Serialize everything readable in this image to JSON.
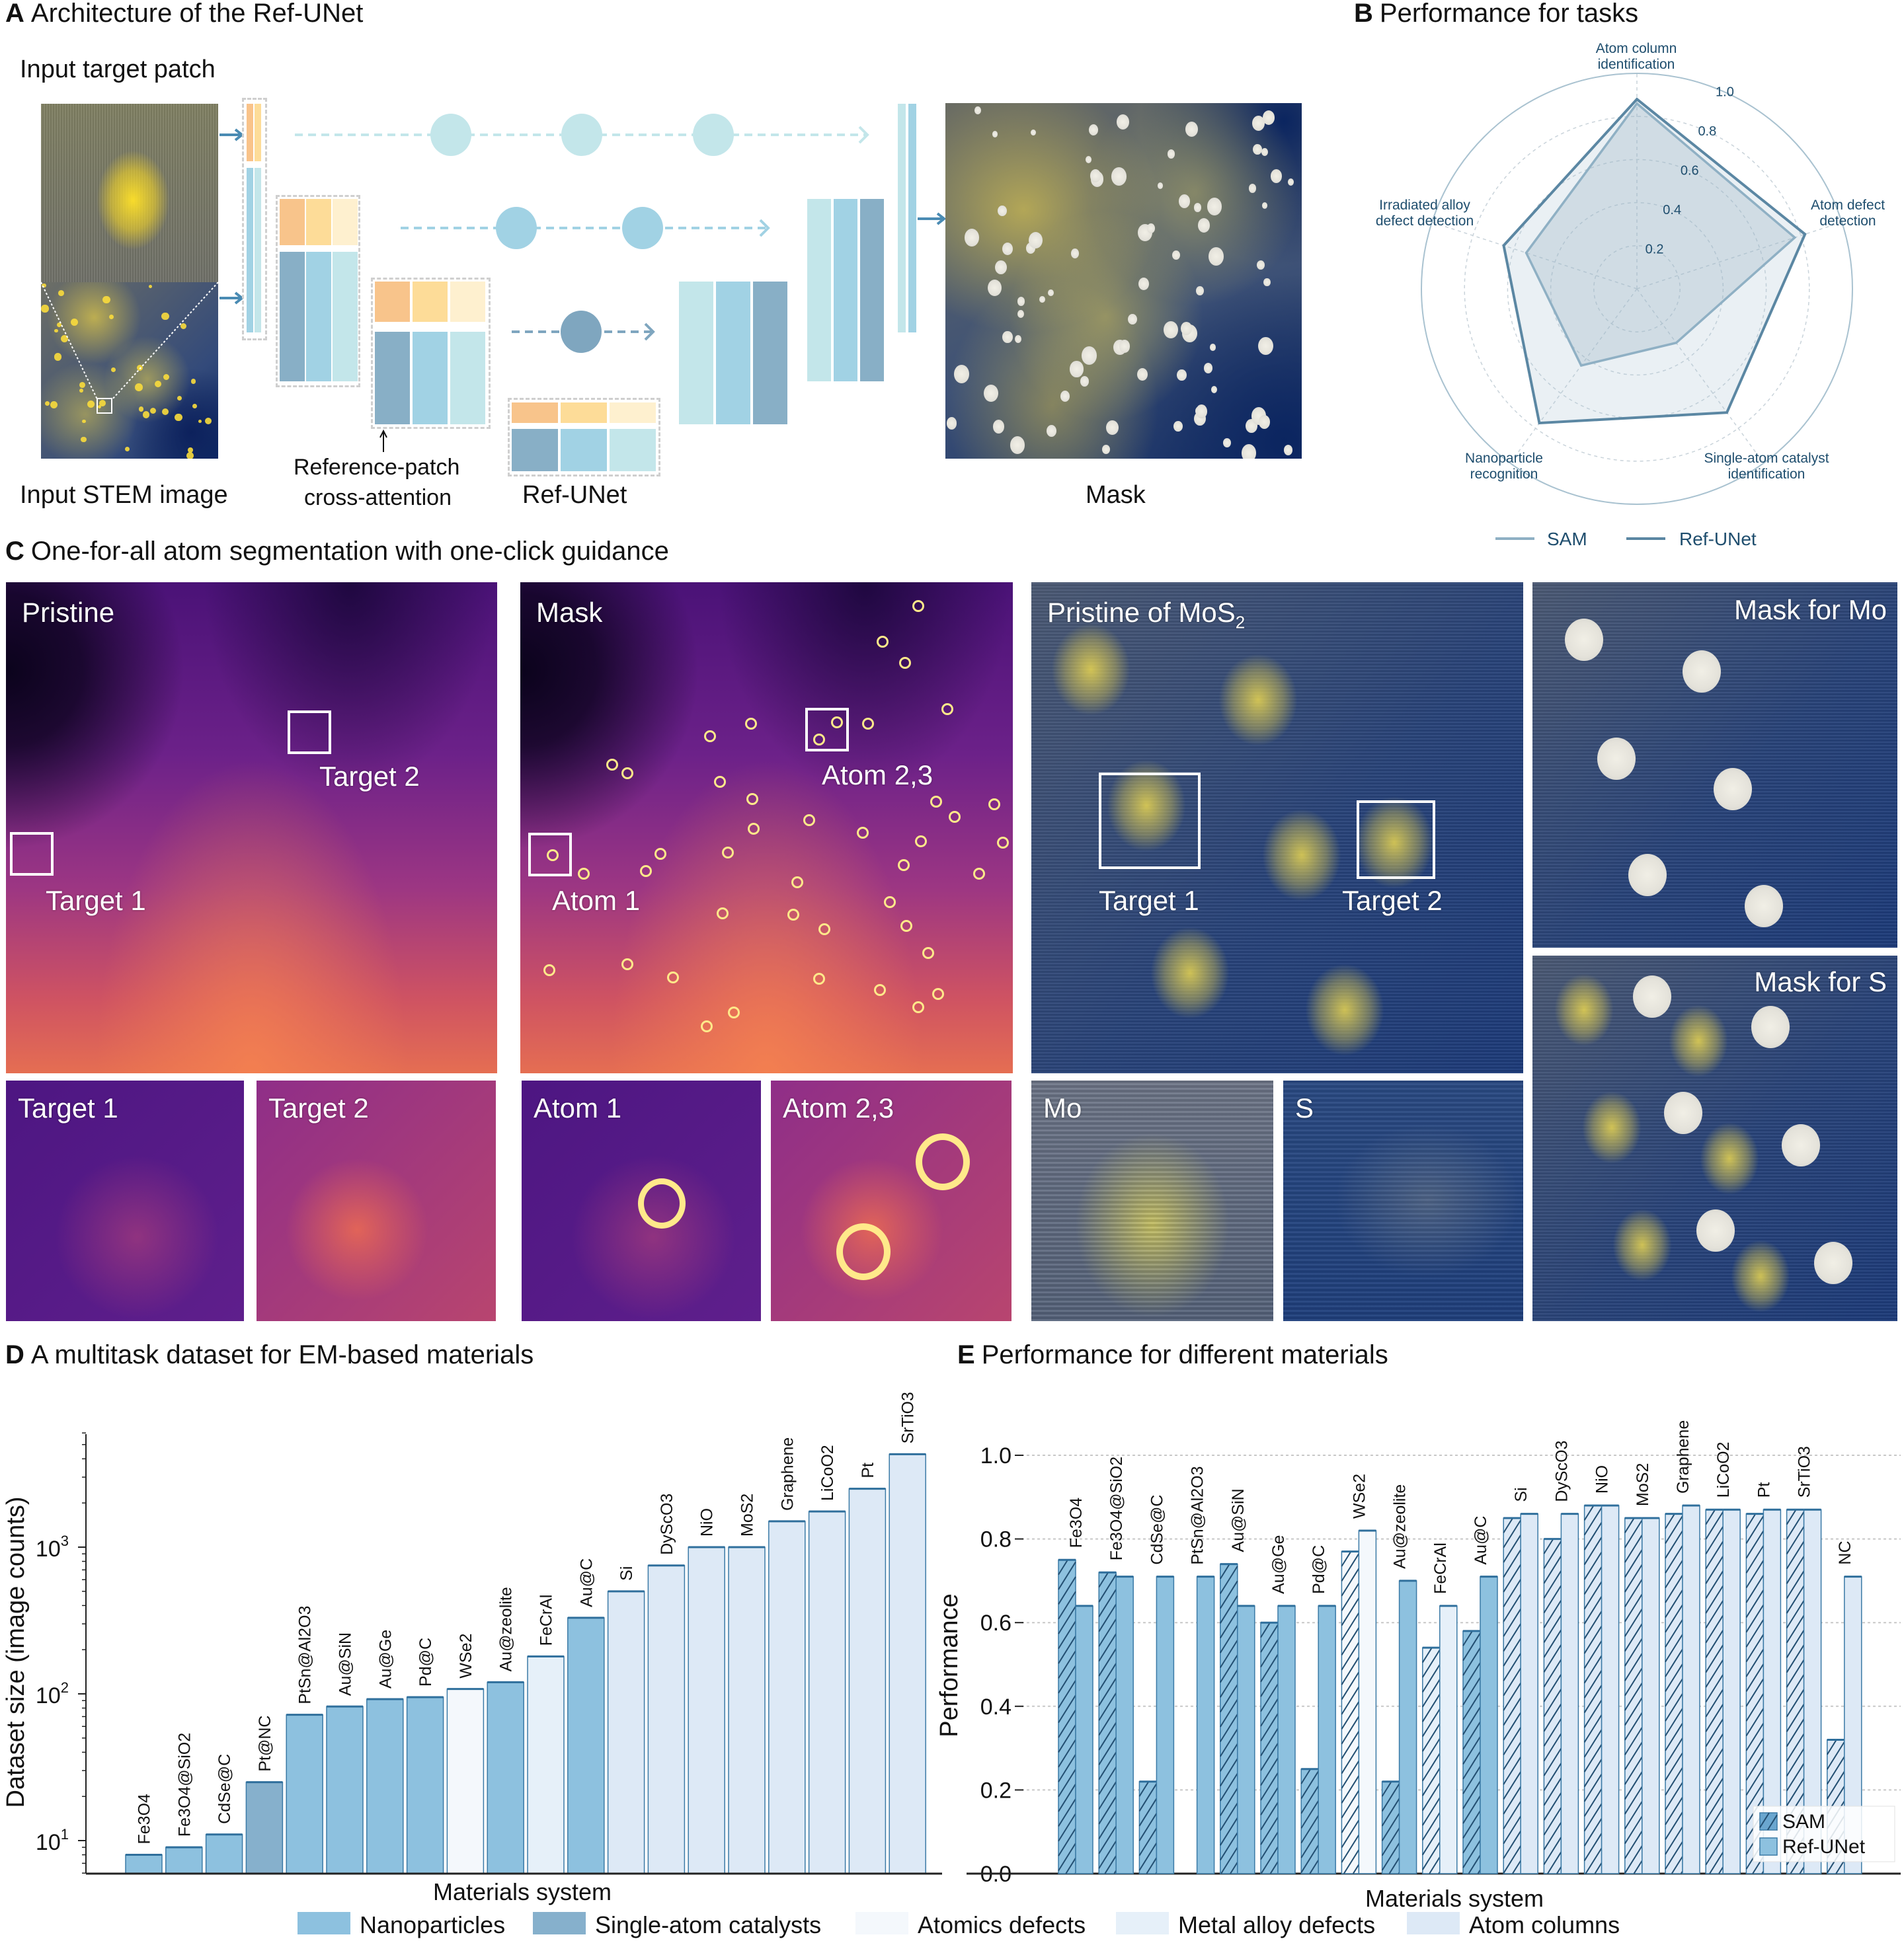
{
  "panels": {
    "A": {
      "letter": "A",
      "title": "Architecture of the Ref-UNet",
      "input_patch_label": "Input target patch",
      "stem_label": "Input STEM image",
      "ref_patch_label_1": "Reference-patch",
      "ref_patch_label_2": "cross-attention",
      "refunet_label": "Ref-UNet",
      "mask_label": "Mask"
    },
    "B": {
      "letter": "B",
      "title": "Performance for tasks"
    },
    "C": {
      "letter": "C",
      "title": "One-for-all atom segmentation with one-click guidance",
      "pristine": "Pristine",
      "target1": "Target 1",
      "target2": "Target 2",
      "mask": "Mask",
      "atom1": "Atom 1",
      "atom23": "Atom 2,3",
      "mos2_prefix": "Pristine of MoS",
      "mos2_sub": "2",
      "mos2_target1": "Target 1",
      "mos2_target2": "Target 2",
      "mask_mo": "Mask  for Mo",
      "mask_s": "Mask for S",
      "thumb_target1": "Target 1",
      "thumb_target2": "Target 2",
      "thumb_atom1": "Atom 1",
      "thumb_atom23": "Atom 2,3",
      "thumb_mo": "Mo",
      "thumb_s": "S"
    },
    "D": {
      "letter": "D",
      "title": "A multitask dataset for EM-based materials"
    },
    "E": {
      "letter": "E",
      "title": "Performance for different materials"
    }
  },
  "colors": {
    "Nanoparticles": "#8dc1df",
    "Single-atom catalysts": "#86b0cc",
    "Atomics defects": "#f4f8fc",
    "Metal alloy defects": "#e6f0f9",
    "Atom columns": "#dde9f6",
    "bar_edge": "#3b7aa6",
    "sam_line": "#8fb0c4",
    "refunet_line": "#5b87a3",
    "radar_text": "#1f4e6e"
  },
  "legend": {
    "categories": [
      "Nanoparticles",
      "Single-atom catalysts",
      "Atomics defects",
      "Metal alloy defects",
      "Atom columns"
    ]
  },
  "chart_data": [
    {
      "type": "radar",
      "panel": "B",
      "categories": [
        "Atom column identification",
        "Atom defect detection",
        "Single-atom catalyst identification",
        "Nanoparticle recognition",
        "Irradiated alloy defect detection"
      ],
      "category_lines": [
        [
          "Atom column",
          "identification"
        ],
        [
          "Atom defect",
          "detection"
        ],
        [
          "Single-atom catalyst",
          "identification"
        ],
        [
          "Nanoparticle",
          "recognition"
        ],
        [
          "Irradiated alloy",
          "defect detection"
        ]
      ],
      "series": [
        {
          "name": "SAM",
          "values": [
            0.86,
            0.77,
            0.31,
            0.44,
            0.54
          ]
        },
        {
          "name": "Ref-UNet",
          "values": [
            0.88,
            0.82,
            0.71,
            0.77,
            0.65
          ]
        }
      ],
      "rticks": [
        0.2,
        0.4,
        0.6,
        0.8,
        1.0
      ],
      "rlim": [
        0,
        1.0
      ],
      "legend_position": "bottom"
    },
    {
      "type": "bar",
      "panel": "D",
      "categories": [
        "Fe3O4",
        "Fe3O4@SiO2",
        "CdSe@C",
        "Pt@NC",
        "PtSn@Al2O3",
        "Au@SiN",
        "Au@Ge",
        "Pd@C",
        "WSe2",
        "Au@zeolite",
        "FeCrAl",
        "Au@C",
        "Si",
        "DyScO3",
        "NiO",
        "MoS2",
        "Graphene",
        "LiCoO2",
        "Pt",
        "SrTiO3"
      ],
      "groups": [
        "Nanoparticles",
        "Nanoparticles",
        "Nanoparticles",
        "Single-atom catalysts",
        "Nanoparticles",
        "Nanoparticles",
        "Nanoparticles",
        "Nanoparticles",
        "Atomics defects",
        "Nanoparticles",
        "Metal alloy defects",
        "Nanoparticles",
        "Atom columns",
        "Atom columns",
        "Atom columns",
        "Atom columns",
        "Atom columns",
        "Atom columns",
        "Atom columns",
        "Atom columns"
      ],
      "values": [
        8,
        9,
        11,
        25,
        72,
        82,
        92,
        95,
        108,
        120,
        180,
        330,
        500,
        750,
        1000,
        1000,
        1500,
        1750,
        2500,
        4300
      ],
      "xlabel": "Materials system",
      "ylabel": "Dataset size (image counts)",
      "yscale": "log",
      "ylim": [
        6,
        6000
      ],
      "yticks": [
        10,
        100,
        1000
      ],
      "legend_position": "bottom"
    },
    {
      "type": "bar",
      "panel": "E",
      "categories": [
        "Fe3O4",
        "Fe3O4@SiO2",
        "CdSe@C",
        "PtSn@Al2O3",
        "Au@SiN",
        "Au@Ge",
        "Pd@C",
        "WSe2",
        "Au@zeolite",
        "FeCrAl",
        "Au@C",
        "Si",
        "DyScO3",
        "NiO",
        "MoS2",
        "Graphene",
        "LiCoO2",
        "Pt",
        "SrTiO3",
        "NC"
      ],
      "groups": [
        "Nanoparticles",
        "Nanoparticles",
        "Nanoparticles",
        "Nanoparticles",
        "Nanoparticles",
        "Nanoparticles",
        "Nanoparticles",
        "Atomics defects",
        "Nanoparticles",
        "Metal alloy defects",
        "Nanoparticles",
        "Atom columns",
        "Atom columns",
        "Atom columns",
        "Atom columns",
        "Atom columns",
        "Atom columns",
        "Atom columns",
        "Atom columns",
        "Atom columns"
      ],
      "series": [
        {
          "name": "SAM",
          "pattern": "hatched",
          "values": [
            0.75,
            0.72,
            0.22,
            null,
            0.74,
            0.6,
            0.25,
            0.77,
            0.22,
            0.54,
            0.58,
            0.85,
            0.8,
            0.88,
            0.85,
            0.86,
            0.87,
            0.86,
            0.87,
            0.32
          ]
        },
        {
          "name": "Ref-UNet",
          "pattern": "solid",
          "values": [
            0.64,
            0.71,
            0.71,
            0.71,
            0.64,
            0.64,
            0.64,
            0.82,
            0.7,
            0.64,
            0.71,
            0.86,
            0.86,
            0.88,
            0.85,
            0.88,
            0.87,
            0.87,
            0.87,
            0.71
          ]
        }
      ],
      "xlabel": "Materials system",
      "ylabel": "Performance",
      "ylim": [
        0,
        1.05
      ],
      "yticks": [
        0.0,
        0.2,
        0.4,
        0.6,
        0.8,
        1.0
      ],
      "grid": true,
      "legend_position": "bottom-right"
    }
  ]
}
